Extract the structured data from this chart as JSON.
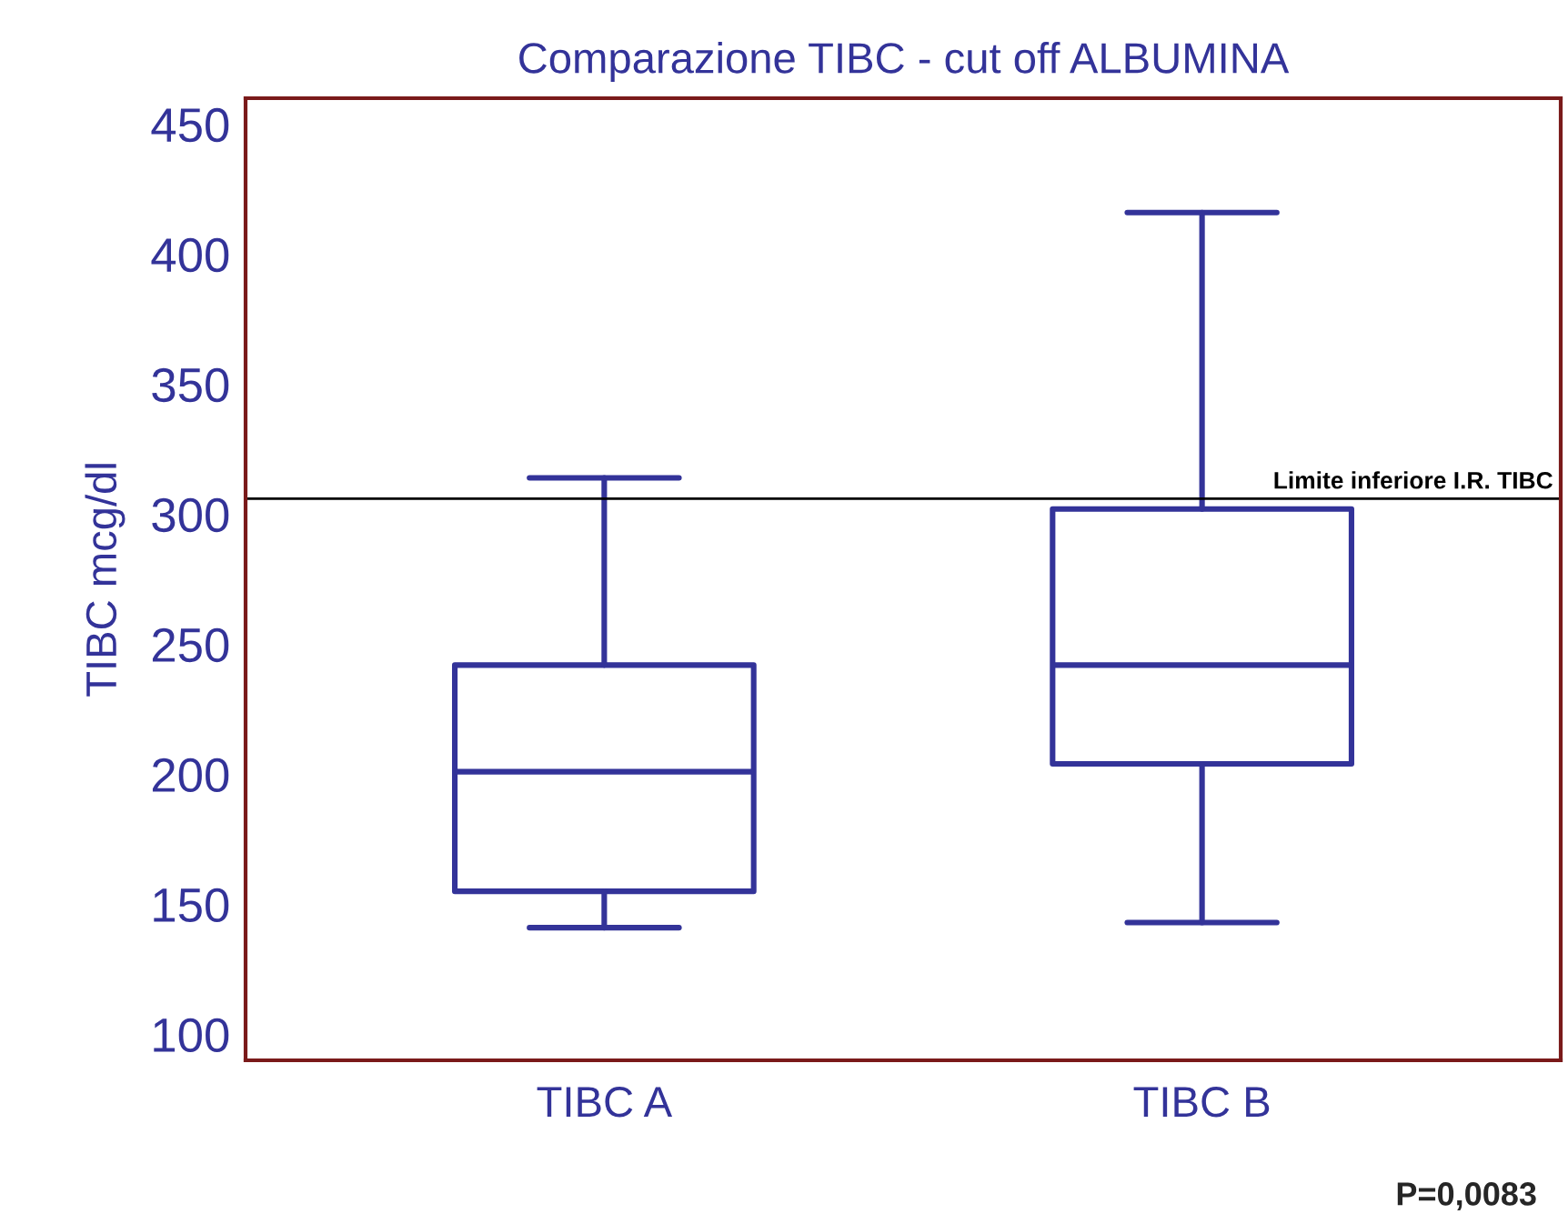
{
  "chart_data": {
    "type": "box",
    "title": "Comparazione TIBC - cut off ALBUMINA",
    "ylabel": "TIBC mcg/dl",
    "categories": [
      "TIBC A",
      "TIBC B"
    ],
    "boxes": [
      {
        "low": 141,
        "q1": 155,
        "median": 201,
        "q3": 242,
        "high": 314
      },
      {
        "low": 143,
        "q1": 204,
        "median": 242,
        "q3": 302,
        "high": 416
      }
    ],
    "color": "#333399",
    "ylim": [
      90,
      460
    ],
    "yticks": [
      100,
      150,
      200,
      250,
      300,
      350,
      400,
      450
    ],
    "ref_lines": [
      {
        "axis": "y",
        "value": 306,
        "label": "Limite inferiore I.R. TIBC",
        "color": "#000000"
      }
    ],
    "annotations": [
      "P=0,0083"
    ],
    "grid": false,
    "legend": false
  }
}
